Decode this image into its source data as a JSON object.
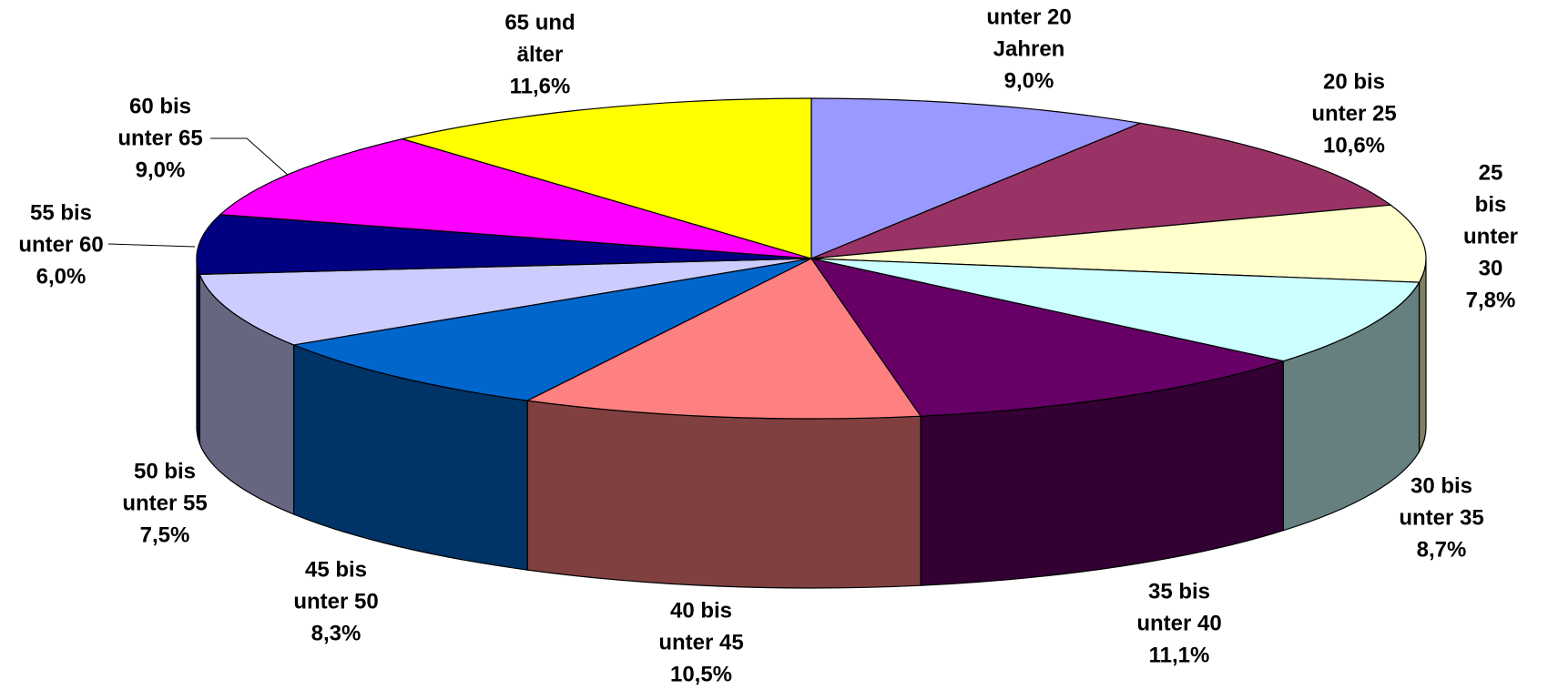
{
  "chart_data": {
    "type": "pie3d",
    "categories": [
      "unter 20\nJahren",
      "20 bis\nunter 25",
      "25 bis\nunter 30",
      "30 bis\nunter 35",
      "35 bis\nunter 40",
      "40 bis\nunter 45",
      "45 bis\nunter 50",
      "50 bis\nunter 55",
      "55 bis\nunter 60",
      "60 bis\nunter 65",
      "65 und\nälter"
    ],
    "values": [
      9.0,
      10.6,
      7.8,
      8.7,
      11.1,
      10.5,
      8.3,
      7.5,
      6.0,
      9.0,
      11.6
    ],
    "value_labels": [
      "9,0%",
      "10,6%",
      "7,8%",
      "8,7%",
      "11,1%",
      "10,5%",
      "8,3%",
      "7,5%",
      "6,0%",
      "9,0%",
      "11,6%"
    ],
    "colors": [
      "#9999ff",
      "#993366",
      "#ffffcc",
      "#ccffff",
      "#660066",
      "#ff8080",
      "#0066cc",
      "#ccccff",
      "#000080",
      "#ff00ff",
      "#ffff00"
    ]
  }
}
